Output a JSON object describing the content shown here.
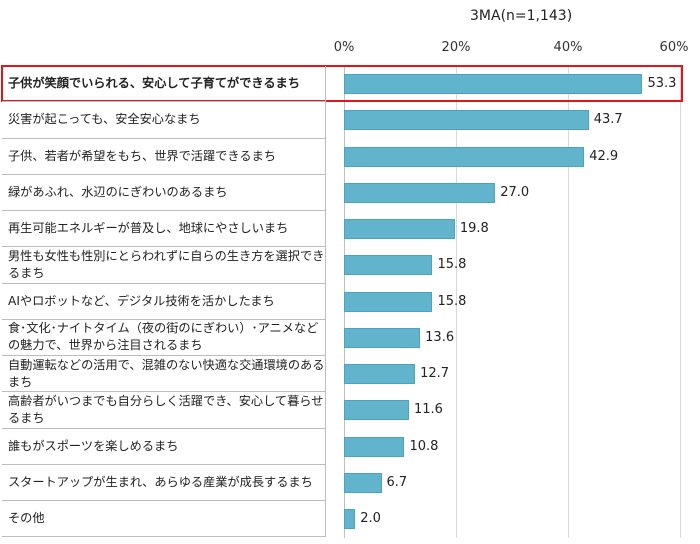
{
  "chart_data": {
    "type": "bar",
    "orientation": "horizontal",
    "note": "3MA(n=1,143)",
    "xlim": [
      0,
      60
    ],
    "tick_labels": [
      "0%",
      "20%",
      "40%",
      "60%"
    ],
    "grid": true,
    "highlight_index": 0,
    "colors": {
      "bar": "#62b3cc",
      "highlight_border": "#e0161a"
    },
    "categories": [
      "子供が笑顔でいられる、安心して子育てができるまち",
      "災害が起こっても、安全安心なまち",
      "子供、若者が希望をもち、世界で活躍できるまち",
      "緑があふれ、水辺のにぎわいのあるまち",
      "再生可能エネルギーが普及し、地球にやさしいまち",
      "男性も女性も性別にとらわれずに自らの生き方を選択できるまち",
      "AIやロボットなど、デジタル技術を活かしたまち",
      "食･文化･ナイトタイム（夜の街のにぎわい）･アニメなどの魅力で、世界から注目されるまち",
      "自動運転などの活用で、混雑のない快適な交通環境のあるまち",
      "高齢者がいつまでも自分らしく活躍でき、安心して暮らせるまち",
      "誰もがスポーツを楽しめるまち",
      "スタートアップが生まれ、あらゆる産業が成長するまち",
      "その他"
    ],
    "values": [
      53.3,
      43.7,
      42.9,
      27.0,
      19.8,
      15.8,
      15.8,
      13.6,
      12.7,
      11.6,
      10.8,
      6.7,
      2.0
    ],
    "value_labels": [
      "53.3",
      "43.7",
      "42.9",
      "27.0",
      "19.8",
      "15.8",
      "15.8",
      "13.6",
      "12.7",
      "11.6",
      "10.8",
      "6.7",
      "2.0"
    ]
  }
}
